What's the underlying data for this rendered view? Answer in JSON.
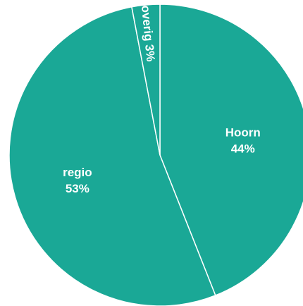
{
  "chart_data": {
    "type": "pie",
    "title": "",
    "slices": [
      {
        "label": "Hoorn",
        "value": 44,
        "value_text": "44%",
        "color": "#1aa896"
      },
      {
        "label": "regio",
        "value": 53,
        "value_text": "53%",
        "color": "#1aa896"
      },
      {
        "label": "overig",
        "value": 3,
        "value_text": "3%",
        "color": "#1aa896"
      }
    ],
    "start": "top",
    "direction": "clockwise",
    "slice_border_color": "#ffffff",
    "label_color": "#ffffff"
  }
}
